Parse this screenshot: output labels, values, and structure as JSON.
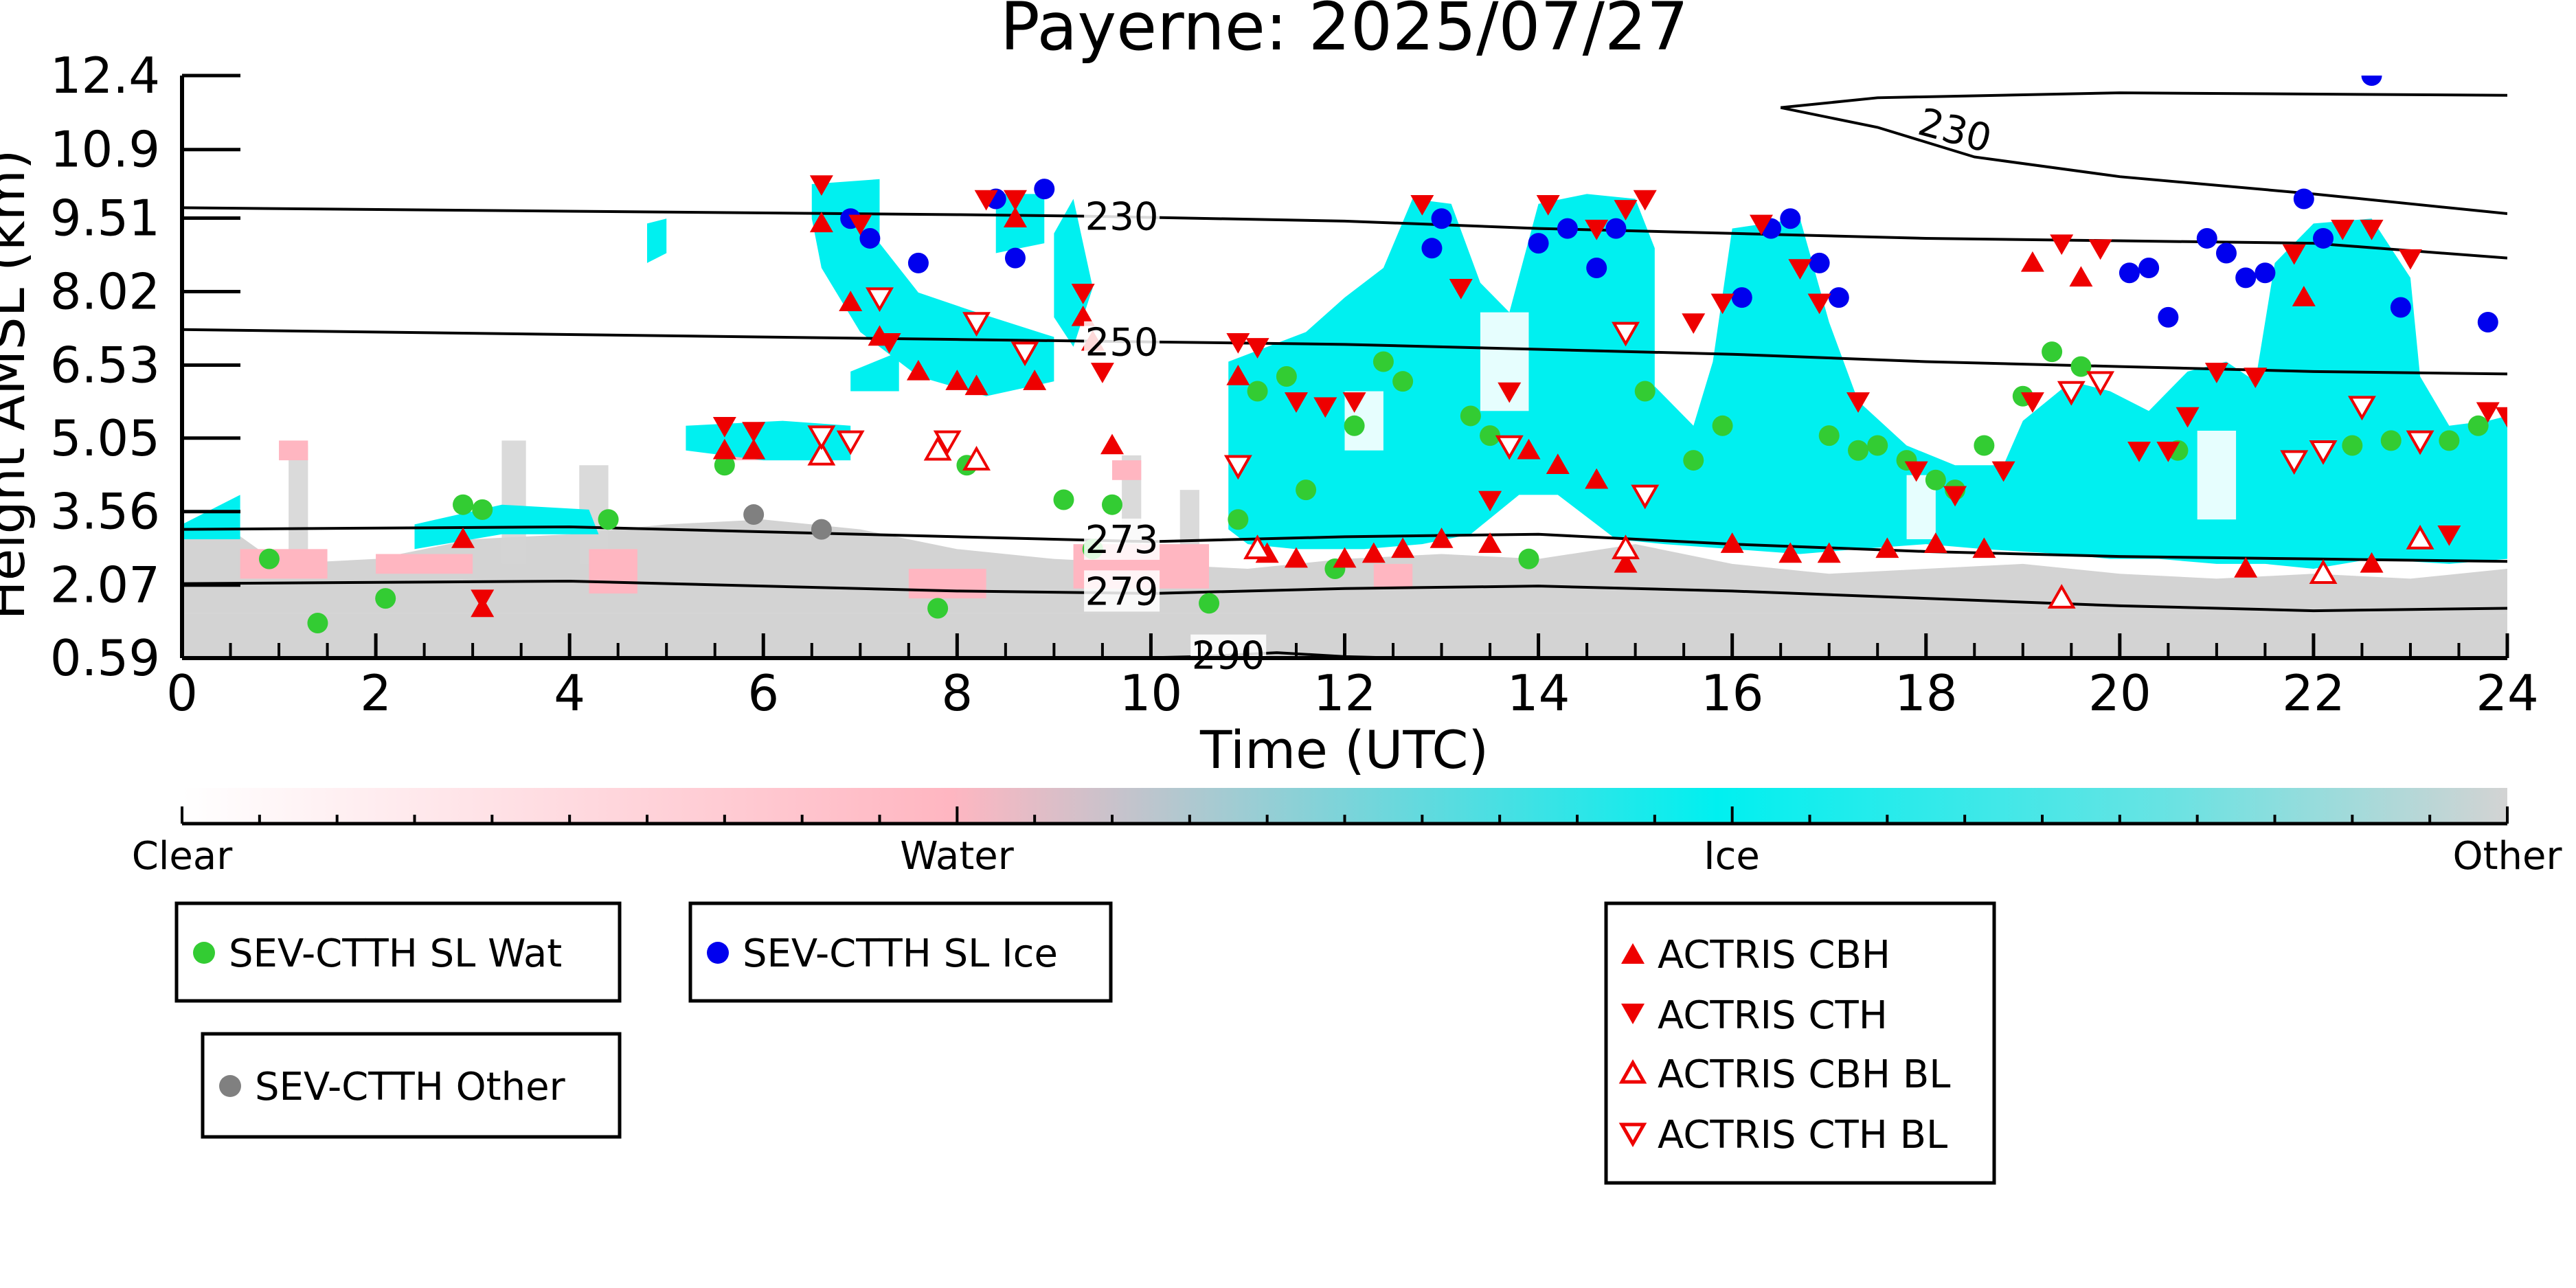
{
  "chart_data": {
    "type": "scatter",
    "title": "Payerne: 2025/07/27",
    "xlabel": "Time (UTC)",
    "ylabel": "Height AMSL (km)",
    "xlim": [
      0,
      24
    ],
    "ylim": [
      0.59,
      12.4
    ],
    "x_ticks": [
      "0",
      "2",
      "4",
      "6",
      "8",
      "10",
      "12",
      "14",
      "16",
      "18",
      "20",
      "22",
      "24"
    ],
    "y_ticks": [
      "0.59",
      "2.07",
      "3.56",
      "5.05",
      "6.53",
      "8.02",
      "9.51",
      "10.9",
      "12.4"
    ],
    "background_classification": {
      "colorbar_labels": [
        "Clear",
        "Water",
        "Ice",
        "Other"
      ],
      "colors": {
        "clear": "#ffffff",
        "water": "#ffb6c1",
        "ice": "#00f0f0",
        "other": "#d3d3d3"
      }
    },
    "contours": [
      {
        "label": "230",
        "points": [
          [
            0,
            9.72
          ],
          [
            4,
            9.65
          ],
          [
            8,
            9.58
          ],
          [
            9.3,
            9.55
          ],
          [
            12,
            9.45
          ],
          [
            14,
            9.3
          ],
          [
            16,
            9.2
          ],
          [
            18,
            9.1
          ],
          [
            20,
            9.05
          ],
          [
            22,
            9.0
          ],
          [
            24,
            8.7
          ]
        ]
      },
      {
        "label": "230",
        "points": [
          [
            16.5,
            11.75
          ],
          [
            17.5,
            11.95
          ],
          [
            20,
            12.05
          ],
          [
            24,
            12.0
          ]
        ]
      },
      {
        "label": "230",
        "points": [
          [
            16.5,
            11.75
          ],
          [
            17.5,
            11.35
          ],
          [
            18.5,
            10.75
          ],
          [
            20,
            10.35
          ],
          [
            22,
            10.0
          ],
          [
            24,
            9.6
          ]
        ]
      },
      {
        "label": "250",
        "points": [
          [
            0,
            7.25
          ],
          [
            4,
            7.15
          ],
          [
            8,
            7.05
          ],
          [
            10,
            7.0
          ],
          [
            12,
            6.95
          ],
          [
            14,
            6.85
          ],
          [
            16,
            6.75
          ],
          [
            18,
            6.6
          ],
          [
            20,
            6.5
          ],
          [
            22,
            6.4
          ],
          [
            24,
            6.35
          ]
        ]
      },
      {
        "label": "273",
        "points": [
          [
            0,
            3.2
          ],
          [
            4,
            3.25
          ],
          [
            8,
            3.05
          ],
          [
            10,
            2.95
          ],
          [
            12,
            3.05
          ],
          [
            14,
            3.1
          ],
          [
            16,
            2.9
          ],
          [
            18,
            2.75
          ],
          [
            20,
            2.65
          ],
          [
            22,
            2.6
          ],
          [
            24,
            2.55
          ]
        ]
      },
      {
        "label": "279",
        "points": [
          [
            0,
            2.1
          ],
          [
            4,
            2.15
          ],
          [
            8,
            1.95
          ],
          [
            10,
            1.9
          ],
          [
            12,
            2.0
          ],
          [
            14,
            2.05
          ],
          [
            16,
            1.95
          ],
          [
            18,
            1.8
          ],
          [
            20,
            1.65
          ],
          [
            22,
            1.55
          ],
          [
            24,
            1.6
          ]
        ]
      },
      {
        "label": "290",
        "points": [
          [
            9.8,
            0.59
          ],
          [
            10.5,
            0.62
          ],
          [
            11.3,
            0.7
          ],
          [
            12.0,
            0.62
          ],
          [
            12.6,
            0.59
          ]
        ]
      }
    ],
    "series": [
      {
        "name": "SEV-CTTH SL Wat",
        "color": "#33cc33",
        "marker": "circle",
        "points": [
          [
            0.9,
            2.6
          ],
          [
            1.4,
            1.3
          ],
          [
            2.1,
            1.8
          ],
          [
            2.9,
            3.7
          ],
          [
            3.1,
            3.6
          ],
          [
            4.4,
            3.4
          ],
          [
            5.6,
            4.5
          ],
          [
            7.8,
            1.6
          ],
          [
            8.1,
            4.5
          ],
          [
            9.1,
            3.8
          ],
          [
            9.4,
            2.8
          ],
          [
            9.6,
            3.7
          ],
          [
            10.6,
            1.7
          ],
          [
            10.9,
            3.4
          ],
          [
            11.1,
            6.0
          ],
          [
            11.4,
            6.3
          ],
          [
            11.6,
            4.0
          ],
          [
            11.9,
            2.4
          ],
          [
            12.1,
            5.3
          ],
          [
            12.4,
            6.6
          ],
          [
            12.6,
            6.2
          ],
          [
            13.3,
            5.5
          ],
          [
            13.5,
            5.1
          ],
          [
            13.9,
            2.6
          ],
          [
            15.1,
            6.0
          ],
          [
            15.6,
            4.6
          ],
          [
            15.9,
            5.3
          ],
          [
            17.0,
            5.1
          ],
          [
            17.3,
            4.8
          ],
          [
            17.5,
            4.9
          ],
          [
            17.8,
            4.6
          ],
          [
            18.1,
            4.2
          ],
          [
            18.3,
            4.0
          ],
          [
            18.6,
            4.9
          ],
          [
            19.0,
            5.9
          ],
          [
            19.3,
            6.8
          ],
          [
            19.6,
            6.5
          ],
          [
            20.6,
            4.8
          ],
          [
            22.4,
            4.9
          ],
          [
            22.8,
            5.0
          ],
          [
            23.4,
            5.0
          ],
          [
            23.7,
            5.3
          ]
        ]
      },
      {
        "name": "SEV-CTTH SL Ice",
        "color": "#0000ee",
        "marker": "circle",
        "points": [
          [
            6.9,
            9.5
          ],
          [
            7.1,
            9.1
          ],
          [
            7.6,
            8.6
          ],
          [
            8.4,
            9.9
          ],
          [
            8.6,
            8.7
          ],
          [
            8.9,
            10.1
          ],
          [
            13.0,
            9.5
          ],
          [
            12.9,
            8.9
          ],
          [
            14.0,
            9.0
          ],
          [
            14.3,
            9.3
          ],
          [
            14.6,
            8.5
          ],
          [
            14.8,
            9.3
          ],
          [
            16.1,
            7.9
          ],
          [
            16.4,
            9.3
          ],
          [
            16.6,
            9.5
          ],
          [
            16.9,
            8.6
          ],
          [
            17.1,
            7.9
          ],
          [
            20.1,
            8.4
          ],
          [
            20.3,
            8.5
          ],
          [
            20.5,
            7.5
          ],
          [
            20.9,
            9.1
          ],
          [
            21.1,
            8.8
          ],
          [
            21.3,
            8.3
          ],
          [
            21.5,
            8.4
          ],
          [
            21.9,
            9.9
          ],
          [
            22.1,
            9.1
          ],
          [
            22.6,
            12.4
          ],
          [
            22.9,
            7.7
          ],
          [
            23.8,
            7.4
          ]
        ]
      },
      {
        "name": "SEV-CTTH Other",
        "color": "#808080",
        "marker": "circle",
        "points": [
          [
            5.9,
            3.5
          ],
          [
            6.6,
            3.2
          ]
        ]
      },
      {
        "name": "ACTRIS CBH",
        "color": "#ee0000",
        "marker": "triangle-up",
        "filled": true,
        "points": [
          [
            2.9,
            3.0
          ],
          [
            3.1,
            1.6
          ],
          [
            5.6,
            4.8
          ],
          [
            5.9,
            4.8
          ],
          [
            6.6,
            9.4
          ],
          [
            6.9,
            7.8
          ],
          [
            7.2,
            7.1
          ],
          [
            7.6,
            6.4
          ],
          [
            8.0,
            6.2
          ],
          [
            8.2,
            6.1
          ],
          [
            8.6,
            9.5
          ],
          [
            8.8,
            6.2
          ],
          [
            9.3,
            7.5
          ],
          [
            9.4,
            7.0
          ],
          [
            9.6,
            4.9
          ],
          [
            10.9,
            6.3
          ],
          [
            11.2,
            2.7
          ],
          [
            11.5,
            2.6
          ],
          [
            12.0,
            2.6
          ],
          [
            12.3,
            2.7
          ],
          [
            12.6,
            2.8
          ],
          [
            13.0,
            3.0
          ],
          [
            13.5,
            2.9
          ],
          [
            13.9,
            4.8
          ],
          [
            14.2,
            4.5
          ],
          [
            14.6,
            4.2
          ],
          [
            14.9,
            2.5
          ],
          [
            16.0,
            2.9
          ],
          [
            16.6,
            2.7
          ],
          [
            17.0,
            2.7
          ],
          [
            17.6,
            2.8
          ],
          [
            18.1,
            2.9
          ],
          [
            18.6,
            2.8
          ],
          [
            19.1,
            8.6
          ],
          [
            19.6,
            8.3
          ],
          [
            21.3,
            2.4
          ],
          [
            21.9,
            7.9
          ],
          [
            22.6,
            2.5
          ]
        ]
      },
      {
        "name": "ACTRIS CTH",
        "color": "#ee0000",
        "marker": "triangle-down",
        "filled": true,
        "points": [
          [
            3.1,
            1.8
          ],
          [
            5.6,
            5.3
          ],
          [
            5.9,
            5.2
          ],
          [
            6.6,
            10.2
          ],
          [
            7.0,
            9.4
          ],
          [
            7.3,
            7.0
          ],
          [
            8.3,
            9.9
          ],
          [
            8.6,
            9.9
          ],
          [
            9.3,
            8.0
          ],
          [
            9.5,
            6.4
          ],
          [
            10.9,
            7.0
          ],
          [
            11.1,
            6.9
          ],
          [
            11.5,
            5.8
          ],
          [
            11.8,
            5.7
          ],
          [
            12.1,
            5.8
          ],
          [
            12.8,
            9.8
          ],
          [
            13.2,
            8.1
          ],
          [
            13.5,
            3.8
          ],
          [
            13.7,
            6.0
          ],
          [
            14.1,
            9.8
          ],
          [
            14.6,
            9.3
          ],
          [
            14.9,
            9.7
          ],
          [
            15.1,
            9.9
          ],
          [
            15.6,
            7.4
          ],
          [
            15.9,
            7.8
          ],
          [
            16.3,
            9.4
          ],
          [
            16.7,
            8.5
          ],
          [
            16.9,
            7.8
          ],
          [
            17.3,
            5.8
          ],
          [
            17.9,
            4.4
          ],
          [
            18.3,
            3.9
          ],
          [
            18.8,
            4.4
          ],
          [
            19.1,
            5.8
          ],
          [
            19.4,
            9.0
          ],
          [
            19.8,
            8.9
          ],
          [
            20.2,
            4.8
          ],
          [
            20.5,
            4.8
          ],
          [
            20.7,
            5.5
          ],
          [
            21.0,
            6.4
          ],
          [
            21.4,
            6.3
          ],
          [
            21.8,
            8.8
          ],
          [
            22.3,
            9.3
          ],
          [
            22.6,
            9.3
          ],
          [
            23.0,
            8.7
          ],
          [
            23.4,
            3.1
          ],
          [
            23.8,
            5.6
          ],
          [
            24.0,
            5.5
          ]
        ]
      },
      {
        "name": "ACTRIS CBH BL",
        "color": "#ee0000",
        "marker": "triangle-up",
        "filled": false,
        "points": [
          [
            6.6,
            4.7
          ],
          [
            7.8,
            4.8
          ],
          [
            8.2,
            4.6
          ],
          [
            11.1,
            2.8
          ],
          [
            14.9,
            2.8
          ],
          [
            19.4,
            1.8
          ],
          [
            22.1,
            2.3
          ],
          [
            23.1,
            3.0
          ]
        ]
      },
      {
        "name": "ACTRIS CTH BL",
        "color": "#ee0000",
        "marker": "triangle-down",
        "filled": false,
        "points": [
          [
            6.6,
            5.1
          ],
          [
            6.9,
            5.0
          ],
          [
            7.2,
            7.9
          ],
          [
            7.9,
            5.0
          ],
          [
            8.2,
            7.4
          ],
          [
            8.7,
            6.8
          ],
          [
            10.9,
            4.5
          ],
          [
            13.7,
            4.9
          ],
          [
            14.9,
            7.2
          ],
          [
            15.1,
            3.9
          ],
          [
            19.5,
            6.0
          ],
          [
            19.8,
            6.2
          ],
          [
            21.8,
            4.6
          ],
          [
            22.1,
            4.8
          ],
          [
            22.5,
            5.7
          ],
          [
            23.1,
            5.0
          ]
        ]
      }
    ],
    "legend": {
      "box1": [
        "SEV-CTTH SL Wat"
      ],
      "box2": [
        "SEV-CTTH SL Ice"
      ],
      "box3": [
        "SEV-CTTH Other"
      ],
      "box4": [
        "ACTRIS CBH",
        "ACTRIS CTH",
        "ACTRIS CBH BL",
        "ACTRIS CTH BL"
      ]
    }
  }
}
